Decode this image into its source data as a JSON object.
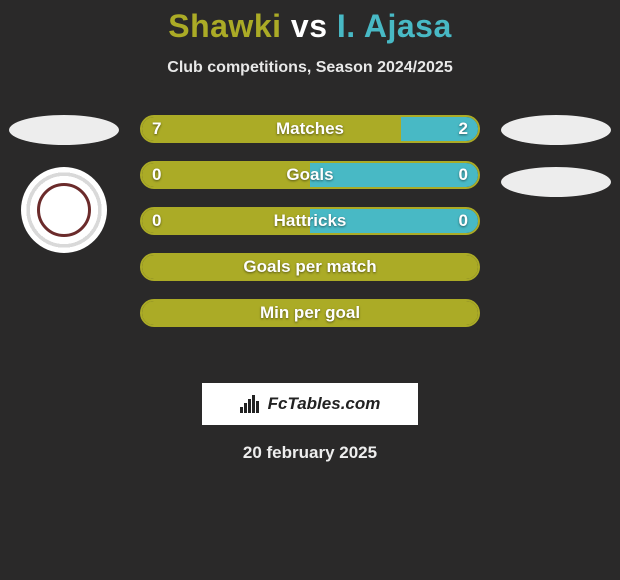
{
  "colors": {
    "player1": "#abab26",
    "player2": "#48b9c5",
    "bg": "#2a2929",
    "white": "#ffffff"
  },
  "title": {
    "player1": "Shawki",
    "vs": "vs",
    "player2": "I. Ajasa"
  },
  "subtitle": "Club competitions, Season 2024/2025",
  "bars": [
    {
      "label": "Matches",
      "left": "7",
      "right": "2",
      "left_pct": 77,
      "right_pct": 23,
      "show_values": true
    },
    {
      "label": "Goals",
      "left": "0",
      "right": "0",
      "left_pct": 50,
      "right_pct": 50,
      "show_values": true
    },
    {
      "label": "Hattricks",
      "left": "0",
      "right": "0",
      "left_pct": 50,
      "right_pct": 50,
      "show_values": true
    },
    {
      "label": "Goals per match",
      "left": "",
      "right": "",
      "left_pct": 100,
      "right_pct": 0,
      "show_values": false
    },
    {
      "label": "Min per goal",
      "left": "",
      "right": "",
      "left_pct": 100,
      "right_pct": 0,
      "show_values": false
    }
  ],
  "brand": "FcTables.com",
  "date": "20 february 2025"
}
